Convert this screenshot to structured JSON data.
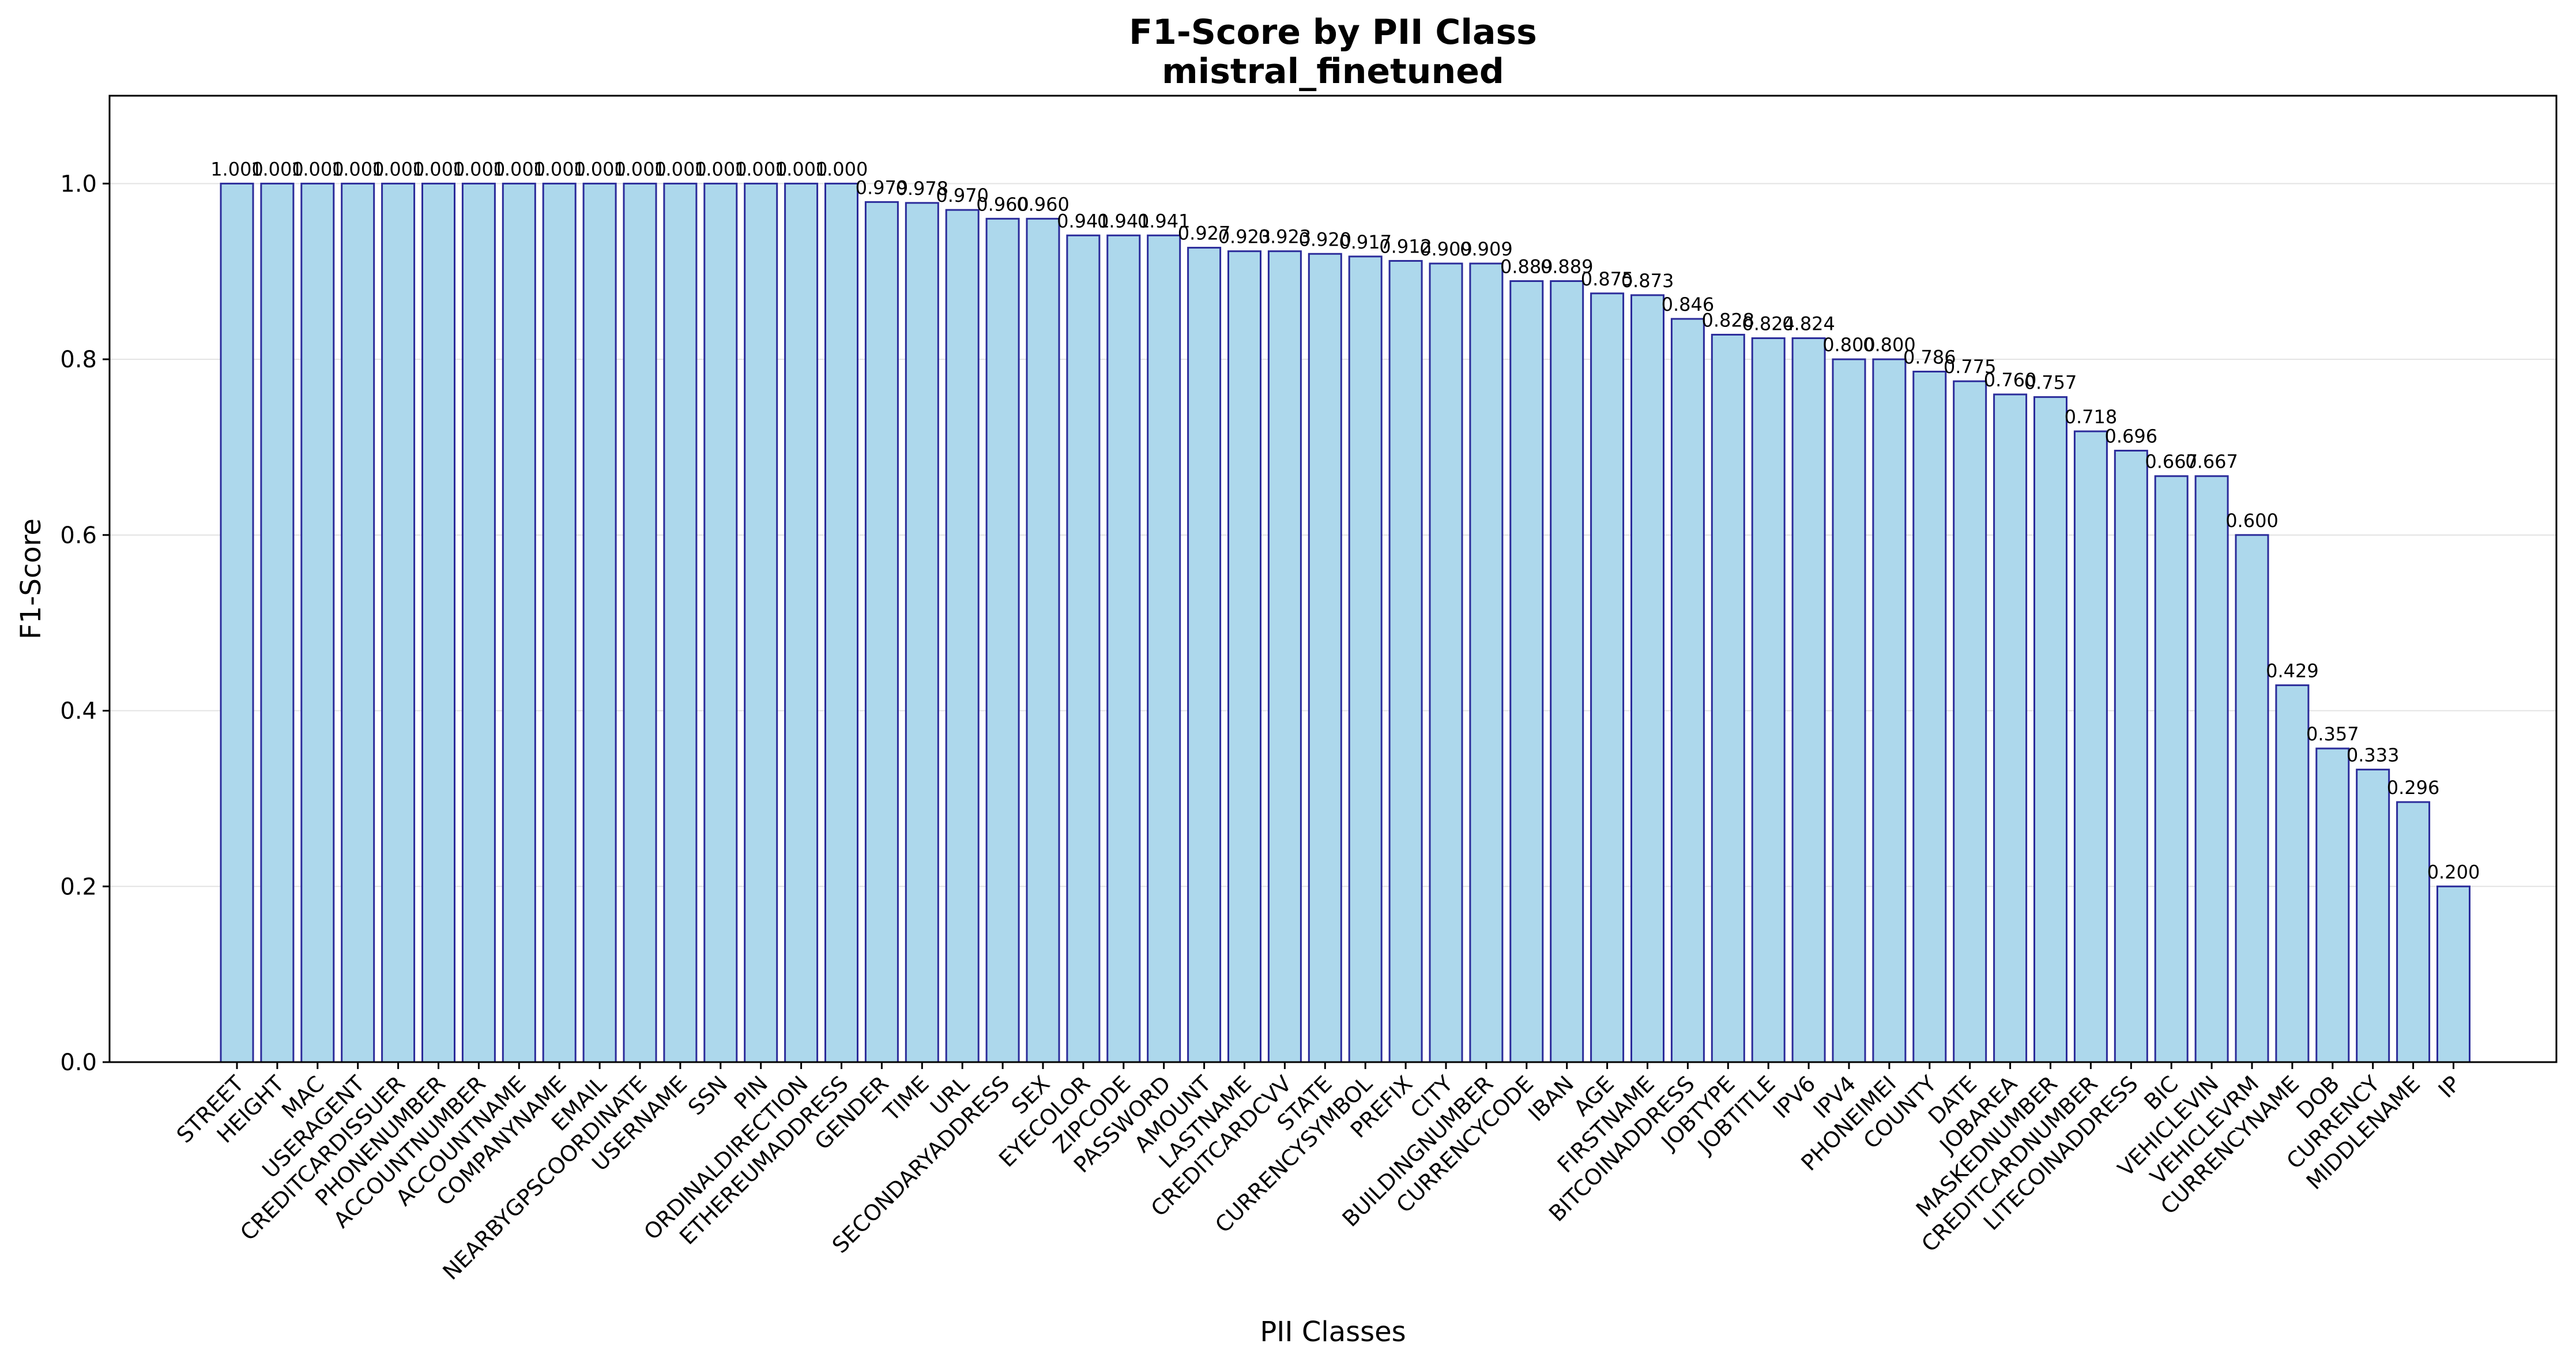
{
  "chart_data": {
    "type": "bar",
    "title": "F1-Score by PII Class",
    "subtitle": "mistral_finetuned",
    "xlabel": "PII Classes",
    "ylabel": "F1-Score",
    "ylim": [
      0,
      1.1
    ],
    "yticks": [
      0.0,
      0.2,
      0.4,
      0.6,
      0.8,
      1.0
    ],
    "ytick_labels": [
      "0.0",
      "0.2",
      "0.4",
      "0.6",
      "0.8",
      "1.0"
    ],
    "grid": "horizontal",
    "bar_color": "#add8ec",
    "bar_edge_color": "#2b2b9a",
    "categories": [
      "STREET",
      "HEIGHT",
      "MAC",
      "USERAGENT",
      "CREDITCARDISSUER",
      "PHONENUMBER",
      "ACCOUNTNUMBER",
      "ACCOUNTNAME",
      "COMPANYNAME",
      "EMAIL",
      "NEARBYGPSCOORDINATE",
      "USERNAME",
      "SSN",
      "PIN",
      "ORDINALDIRECTION",
      "ETHEREUMADDRESS",
      "GENDER",
      "TIME",
      "URL",
      "SECONDARYADDRESS",
      "SEX",
      "EYECOLOR",
      "ZIPCODE",
      "PASSWORD",
      "AMOUNT",
      "LASTNAME",
      "CREDITCARDCVV",
      "STATE",
      "CURRENCYSYMBOL",
      "PREFIX",
      "CITY",
      "BUILDINGNUMBER",
      "CURRENCYCODE",
      "IBAN",
      "AGE",
      "FIRSTNAME",
      "BITCOINADDRESS",
      "JOBTYPE",
      "JOBTITLE",
      "IPV6",
      "IPV4",
      "PHONEIMEI",
      "COUNTY",
      "DATE",
      "JOBAREA",
      "MASKEDNUMBER",
      "CREDITCARDNUMBER",
      "LITECOINADDRESS",
      "BIC",
      "VEHICLEVIN",
      "VEHICLEVRM",
      "CURRENCYNAME",
      "DOB",
      "CURRENCY",
      "MIDDLENAME",
      "IP"
    ],
    "values": [
      1.0,
      1.0,
      1.0,
      1.0,
      1.0,
      1.0,
      1.0,
      1.0,
      1.0,
      1.0,
      1.0,
      1.0,
      1.0,
      1.0,
      1.0,
      1.0,
      0.979,
      0.978,
      0.97,
      0.96,
      0.96,
      0.941,
      0.941,
      0.941,
      0.927,
      0.923,
      0.923,
      0.92,
      0.917,
      0.912,
      0.909,
      0.909,
      0.889,
      0.889,
      0.875,
      0.873,
      0.846,
      0.828,
      0.824,
      0.824,
      0.8,
      0.8,
      0.786,
      0.775,
      0.76,
      0.757,
      0.718,
      0.696,
      0.667,
      0.667,
      0.6,
      0.429,
      0.357,
      0.333,
      0.296,
      0.2
    ],
    "data_labels": [
      "1.000",
      "1.000",
      "1.000",
      "1.000",
      "1.000",
      "1.000",
      "1.000",
      "1.000",
      "1.000",
      "1.000",
      "1.000",
      "1.000",
      "1.000",
      "1.000",
      "1.000",
      "1.000",
      "0.979",
      "0.978",
      "0.970",
      "0.960",
      "0.960",
      "0.941",
      "0.941",
      "0.941",
      "0.927",
      "0.923",
      "0.923",
      "0.920",
      "0.917",
      "0.912",
      "0.909",
      "0.909",
      "0.889",
      "0.889",
      "0.875",
      "0.873",
      "0.846",
      "0.828",
      "0.824",
      "0.824",
      "0.800",
      "0.800",
      "0.786",
      "0.775",
      "0.760",
      "0.757",
      "0.718",
      "0.696",
      "0.667",
      "0.667",
      "0.600",
      "0.429",
      "0.357",
      "0.333",
      "0.296",
      "0.200"
    ]
  }
}
